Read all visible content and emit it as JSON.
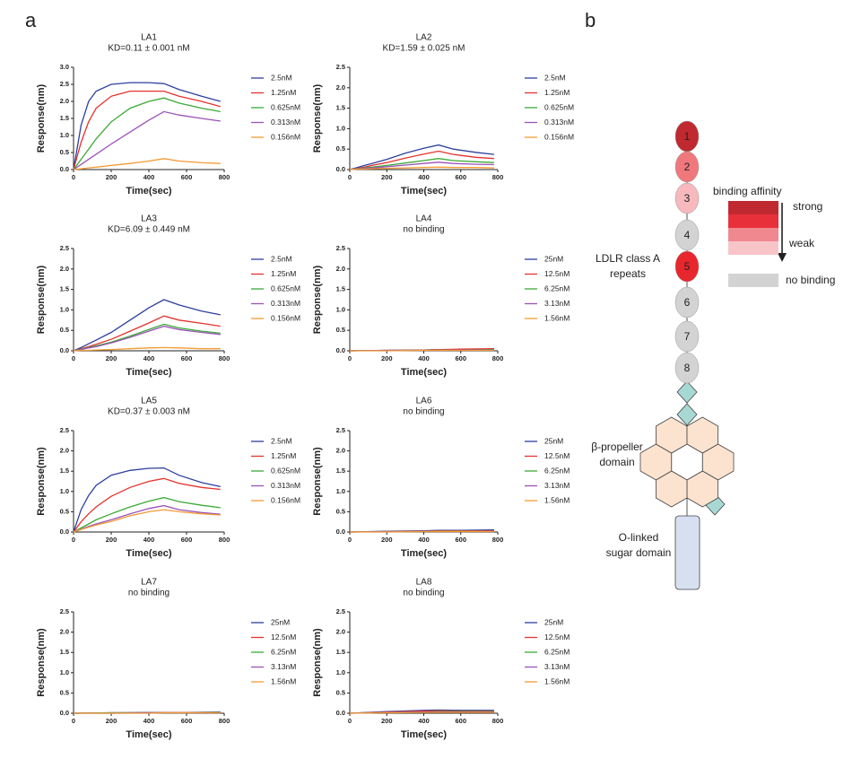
{
  "panel_a": "a",
  "chart_data": [
    {
      "type": "line",
      "title": "LA1",
      "subtitle": "KD=0.11 ± 0.001 nM",
      "x_label": "Time(sec)",
      "y_label": "Response(nm)",
      "x": [
        0,
        40,
        80,
        120,
        200,
        300,
        400,
        480,
        560,
        680,
        780
      ],
      "xlim": [
        0,
        800
      ],
      "xticks": [
        0,
        200,
        400,
        600,
        800
      ],
      "ylim": [
        0,
        3
      ],
      "yticks": [
        {
          "value": 0,
          "label": "0.0"
        },
        0.5,
        {
          "value": 1,
          "label": "1.0"
        },
        1.5,
        {
          "value": 2,
          "label": "2.0"
        },
        2.5,
        {
          "value": 3,
          "label": "3.0"
        }
      ],
      "series": [
        {
          "name": "2.5nM",
          "color": "#2e3f9e",
          "values": [
            0,
            1.3,
            2.0,
            2.3,
            2.5,
            2.55,
            2.55,
            2.52,
            2.35,
            2.15,
            2.0
          ]
        },
        {
          "name": "1.25nM",
          "color": "#e5322d",
          "values": [
            0,
            0.8,
            1.4,
            1.8,
            2.15,
            2.3,
            2.3,
            2.3,
            2.15,
            2.0,
            1.85
          ]
        },
        {
          "name": "0.625nM",
          "color": "#3aaa35",
          "values": [
            0,
            0.3,
            0.6,
            0.9,
            1.4,
            1.8,
            2.0,
            2.1,
            1.95,
            1.8,
            1.7
          ]
        },
        {
          "name": "0.313nM",
          "color": "#9b52b8",
          "values": [
            0,
            0.15,
            0.3,
            0.45,
            0.75,
            1.1,
            1.45,
            1.7,
            1.6,
            1.5,
            1.42
          ]
        },
        {
          "name": "0.156nM",
          "color": "#f39a34",
          "values": [
            0,
            0.02,
            0.05,
            0.07,
            0.12,
            0.18,
            0.25,
            0.32,
            0.25,
            0.2,
            0.18
          ]
        }
      ]
    },
    {
      "type": "line",
      "title": "LA2",
      "subtitle": "KD=1.59 ± 0.025 nM",
      "x_label": "Time(sec)",
      "y_label": "Response(nm)",
      "x": [
        0,
        40,
        80,
        120,
        200,
        300,
        400,
        480,
        560,
        680,
        780
      ],
      "xlim": [
        0,
        800
      ],
      "xticks": [
        0,
        200,
        400,
        600,
        800
      ],
      "ylim": [
        0,
        2.5
      ],
      "yticks": [
        {
          "value": 0,
          "label": "0.0"
        },
        0.5,
        {
          "value": 1,
          "label": "1.0"
        },
        1.5,
        {
          "value": 2,
          "label": "2.0"
        },
        2.5
      ],
      "series": [
        {
          "name": "2.5nM",
          "color": "#2e3f9e",
          "values": [
            0,
            0.05,
            0.1,
            0.15,
            0.25,
            0.4,
            0.52,
            0.6,
            0.5,
            0.42,
            0.37
          ]
        },
        {
          "name": "1.25nM",
          "color": "#e5322d",
          "values": [
            0,
            0.03,
            0.06,
            0.1,
            0.17,
            0.28,
            0.38,
            0.45,
            0.37,
            0.3,
            0.27
          ]
        },
        {
          "name": "0.625nM",
          "color": "#3aaa35",
          "values": [
            0,
            0.02,
            0.04,
            0.06,
            0.1,
            0.16,
            0.22,
            0.27,
            0.22,
            0.19,
            0.17
          ]
        },
        {
          "name": "0.313nM",
          "color": "#9b52b8",
          "values": [
            0,
            0.01,
            0.03,
            0.04,
            0.07,
            0.11,
            0.15,
            0.18,
            0.15,
            0.13,
            0.12
          ]
        },
        {
          "name": "0.156nM",
          "color": "#f39a34",
          "values": [
            0,
            0.01,
            0.01,
            0.02,
            0.03,
            0.04,
            0.05,
            0.06,
            0.05,
            0.05,
            0.04
          ]
        }
      ]
    },
    {
      "type": "line",
      "title": "LA3",
      "subtitle": "KD=6.09 ± 0.449 nM",
      "x_label": "Time(sec)",
      "y_label": "Response(nm)",
      "x": [
        0,
        40,
        80,
        120,
        200,
        300,
        400,
        480,
        560,
        680,
        780
      ],
      "xlim": [
        0,
        800
      ],
      "xticks": [
        0,
        200,
        400,
        600,
        800
      ],
      "ylim": [
        0,
        2.5
      ],
      "yticks": [
        {
          "value": 0,
          "label": "0.0"
        },
        0.5,
        {
          "value": 1,
          "label": "1.0"
        },
        1.5,
        {
          "value": 2,
          "label": "2.0"
        },
        2.5
      ],
      "series": [
        {
          "name": "2.5nM",
          "color": "#2e3f9e",
          "values": [
            0,
            0.08,
            0.17,
            0.26,
            0.45,
            0.75,
            1.05,
            1.25,
            1.12,
            0.97,
            0.88
          ]
        },
        {
          "name": "1.25nM",
          "color": "#e5322d",
          "values": [
            0,
            0.05,
            0.1,
            0.16,
            0.28,
            0.48,
            0.68,
            0.85,
            0.75,
            0.67,
            0.6
          ]
        },
        {
          "name": "0.625nM",
          "color": "#3aaa35",
          "values": [
            0,
            0.04,
            0.08,
            0.12,
            0.21,
            0.36,
            0.52,
            0.65,
            0.56,
            0.48,
            0.43
          ]
        },
        {
          "name": "0.313nM",
          "color": "#9b52b8",
          "values": [
            0,
            0.03,
            0.07,
            0.1,
            0.19,
            0.33,
            0.48,
            0.6,
            0.52,
            0.45,
            0.4
          ]
        },
        {
          "name": "0.156nM",
          "color": "#f39a34",
          "values": [
            0,
            0.01,
            0.01,
            0.02,
            0.03,
            0.05,
            0.07,
            0.08,
            0.07,
            0.05,
            0.05
          ]
        }
      ]
    },
    {
      "type": "line",
      "title": "LA4",
      "subtitle": "no binding",
      "x_label": "Time(sec)",
      "y_label": "Response(nm)",
      "x": [
        0,
        200,
        400,
        480,
        600,
        780
      ],
      "xlim": [
        0,
        800
      ],
      "xticks": [
        0,
        200,
        400,
        600,
        800
      ],
      "ylim": [
        0,
        2.5
      ],
      "yticks": [
        {
          "value": 0,
          "label": "0.0"
        },
        0.5,
        {
          "value": 1,
          "label": "1.0"
        },
        1.5,
        {
          "value": 2,
          "label": "2.0"
        },
        2.5
      ],
      "series": [
        {
          "name": "25nM",
          "color": "#2e3f9e",
          "values": [
            0,
            0.01,
            0.02,
            0.03,
            0.03,
            0.04
          ]
        },
        {
          "name": "12.5nM",
          "color": "#e5322d",
          "values": [
            0,
            0.01,
            0.02,
            0.03,
            0.04,
            0.05
          ]
        },
        {
          "name": "6.25nM",
          "color": "#3aaa35",
          "values": [
            0,
            0.01,
            0.01,
            0.02,
            0.02,
            0.03
          ]
        },
        {
          "name": "3.13nM",
          "color": "#9b52b8",
          "values": [
            0,
            0.01,
            0.01,
            0.01,
            0.02,
            0.02
          ]
        },
        {
          "name": "1.56nM",
          "color": "#f39a34",
          "values": [
            0,
            0,
            0.01,
            0.01,
            0.01,
            0.01
          ]
        }
      ]
    },
    {
      "type": "line",
      "title": "LA5",
      "subtitle": "KD=0.37 ± 0.003 nM",
      "x_label": "Time(sec)",
      "y_label": "Response(nm)",
      "x": [
        0,
        40,
        80,
        120,
        200,
        300,
        400,
        480,
        560,
        680,
        780
      ],
      "xlim": [
        0,
        800
      ],
      "xticks": [
        0,
        200,
        400,
        600,
        800
      ],
      "ylim": [
        0,
        2.5
      ],
      "yticks": [
        {
          "value": 0,
          "label": "0.0"
        },
        0.5,
        {
          "value": 1,
          "label": "1.0"
        },
        1.5,
        {
          "value": 2,
          "label": "2.0"
        },
        2.5
      ],
      "series": [
        {
          "name": "2.5nM",
          "color": "#2e3f9e",
          "values": [
            0,
            0.55,
            0.9,
            1.15,
            1.4,
            1.52,
            1.57,
            1.58,
            1.4,
            1.22,
            1.12
          ]
        },
        {
          "name": "1.25nM",
          "color": "#e5322d",
          "values": [
            0,
            0.25,
            0.45,
            0.62,
            0.88,
            1.1,
            1.25,
            1.32,
            1.2,
            1.1,
            1.05
          ]
        },
        {
          "name": "0.625nM",
          "color": "#3aaa35",
          "values": [
            0,
            0.1,
            0.2,
            0.3,
            0.45,
            0.62,
            0.76,
            0.85,
            0.75,
            0.66,
            0.6
          ]
        },
        {
          "name": "0.313nM",
          "color": "#9b52b8",
          "values": [
            0,
            0.07,
            0.14,
            0.2,
            0.3,
            0.45,
            0.58,
            0.65,
            0.55,
            0.48,
            0.44
          ]
        },
        {
          "name": "0.156nM",
          "color": "#f39a34",
          "values": [
            0,
            0.06,
            0.12,
            0.17,
            0.26,
            0.4,
            0.5,
            0.55,
            0.5,
            0.45,
            0.42
          ]
        }
      ]
    },
    {
      "type": "line",
      "title": "LA6",
      "subtitle": "no binding",
      "x_label": "Time(sec)",
      "y_label": "Response(nm)",
      "x": [
        0,
        200,
        400,
        480,
        600,
        780
      ],
      "xlim": [
        0,
        800
      ],
      "xticks": [
        0,
        200,
        400,
        600,
        800
      ],
      "ylim": [
        0,
        2.5
      ],
      "yticks": [
        {
          "value": 0,
          "label": "0.0"
        },
        0.5,
        {
          "value": 1,
          "label": "1.0"
        },
        1.5,
        {
          "value": 2,
          "label": "2.0"
        },
        2.5
      ],
      "series": [
        {
          "name": "25nM",
          "color": "#2e3f9e",
          "values": [
            0,
            0.02,
            0.03,
            0.04,
            0.04,
            0.05
          ]
        },
        {
          "name": "12.5nM",
          "color": "#e5322d",
          "values": [
            0,
            0.01,
            0.02,
            0.03,
            0.03,
            0.03
          ]
        },
        {
          "name": "6.25nM",
          "color": "#3aaa35",
          "values": [
            0,
            0.01,
            0.01,
            0.02,
            0.02,
            0.02
          ]
        },
        {
          "name": "3.13nM",
          "color": "#9b52b8",
          "values": [
            0,
            0.01,
            0.01,
            0.01,
            0.01,
            0.02
          ]
        },
        {
          "name": "1.56nM",
          "color": "#f39a34",
          "values": [
            0,
            0,
            0.01,
            0.01,
            0.01,
            0.01
          ]
        }
      ]
    },
    {
      "type": "line",
      "title": "LA7",
      "subtitle": "no binding",
      "x_label": "Time(sec)",
      "y_label": "Response(nm)",
      "x": [
        0,
        200,
        400,
        480,
        600,
        780
      ],
      "xlim": [
        0,
        800
      ],
      "xticks": [
        0,
        200,
        400,
        600,
        800
      ],
      "ylim": [
        0,
        2.5
      ],
      "yticks": [
        {
          "value": 0,
          "label": "0.0"
        },
        0.5,
        {
          "value": 1,
          "label": "1.0"
        },
        1.5,
        {
          "value": 2,
          "label": "2.0"
        },
        2.5
      ],
      "series": [
        {
          "name": "25nM",
          "color": "#2e3f9e",
          "values": [
            0,
            0.01,
            0.02,
            0.02,
            0.02,
            0.03
          ]
        },
        {
          "name": "12.5nM",
          "color": "#e5322d",
          "values": [
            0,
            0.01,
            0.01,
            0.02,
            0.02,
            0.02
          ]
        },
        {
          "name": "6.25nM",
          "color": "#3aaa35",
          "values": [
            0,
            0.01,
            0.01,
            0.01,
            0.01,
            0.02
          ]
        },
        {
          "name": "3.13nM",
          "color": "#9b52b8",
          "values": [
            0,
            0,
            0.01,
            0.01,
            0.01,
            0.01
          ]
        },
        {
          "name": "1.56nM",
          "color": "#f39a34",
          "values": [
            0,
            0,
            0,
            0.01,
            0.01,
            0.01
          ]
        }
      ]
    },
    {
      "type": "line",
      "title": "LA8",
      "subtitle": "no binding",
      "x_label": "Time(sec)",
      "y_label": "Response(nm)",
      "x": [
        0,
        200,
        400,
        480,
        600,
        780
      ],
      "xlim": [
        0,
        800
      ],
      "xticks": [
        0,
        200,
        400,
        600,
        800
      ],
      "ylim": [
        0,
        2.5
      ],
      "yticks": [
        {
          "value": 0,
          "label": "0.0"
        },
        0.5,
        {
          "value": 1,
          "label": "1.0"
        },
        1.5,
        {
          "value": 2,
          "label": "2.0"
        },
        2.5
      ],
      "series": [
        {
          "name": "25nM",
          "color": "#2e3f9e",
          "values": [
            0,
            0.04,
            0.07,
            0.08,
            0.07,
            0.07
          ]
        },
        {
          "name": "12.5nM",
          "color": "#e5322d",
          "values": [
            0,
            0.03,
            0.05,
            0.06,
            0.05,
            0.05
          ]
        },
        {
          "name": "6.25nM",
          "color": "#3aaa35",
          "values": [
            0,
            0.02,
            0.03,
            0.04,
            0.04,
            0.04
          ]
        },
        {
          "name": "3.13nM",
          "color": "#9b52b8",
          "values": [
            0,
            0.02,
            0.03,
            0.03,
            0.03,
            0.03
          ]
        },
        {
          "name": "1.56nM",
          "color": "#f39a34",
          "values": [
            0,
            0.01,
            0.02,
            0.02,
            0.02,
            0.02
          ]
        }
      ]
    }
  ],
  "diagram": {
    "label": "b",
    "repeats": [
      "1",
      "2",
      "3",
      "4",
      "5",
      "6",
      "7",
      "8"
    ],
    "repeat_colors": [
      "#c0292f",
      "#f0787c",
      "#f7b9bd",
      "#d3d3d3",
      "#e8262d",
      "#d3d3d3",
      "#d3d3d3",
      "#d3d3d3"
    ],
    "repeats_label": [
      "LDLR class A",
      "repeats"
    ],
    "propeller_label": [
      "β-propeller",
      "domain"
    ],
    "sugar_label": [
      "O-linked",
      "sugar domain"
    ],
    "legend_title": "binding affinity",
    "legend_strong": "strong",
    "legend_weak": "weak",
    "legend_none": "no binding",
    "legend_colors": [
      "#c0292f",
      "#e8303a",
      "#f08890",
      "#f7c4c8"
    ],
    "none_color": "#d3d3d3"
  }
}
